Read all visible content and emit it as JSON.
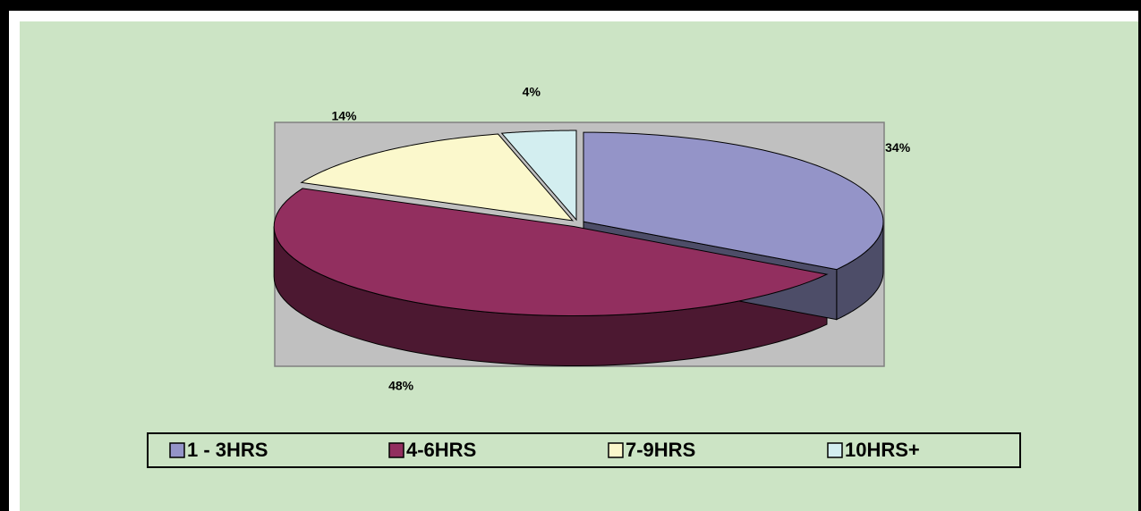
{
  "chart_data": {
    "type": "pie3d",
    "categories": [
      "1 - 3HRS",
      "4-6HRS",
      "7-9HRS",
      "10HRS+"
    ],
    "values": [
      34,
      48,
      14,
      4
    ],
    "value_labels": [
      "34%",
      "48%",
      "14%",
      "4%"
    ],
    "colors": [
      "#9494c8",
      "#922f5f",
      "#fbf8cc",
      "#d3eef0"
    ],
    "legend": "bottom"
  }
}
